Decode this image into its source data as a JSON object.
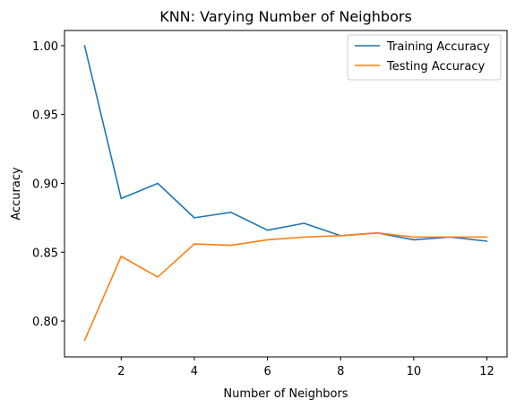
{
  "chart_data": {
    "type": "line",
    "title": "KNN: Varying Number of Neighbors",
    "xlabel": "Number of Neighbors",
    "ylabel": "Accuracy",
    "x": [
      1,
      2,
      3,
      4,
      5,
      6,
      7,
      8,
      9,
      10,
      11,
      12
    ],
    "xlim": [
      0.45,
      12.55
    ],
    "ylim": [
      0.774,
      1.011
    ],
    "xticks": [
      2,
      4,
      6,
      8,
      10,
      12
    ],
    "yticks": [
      0.8,
      0.85,
      0.9,
      0.95,
      1.0
    ],
    "xtick_labels": [
      "2",
      "4",
      "6",
      "8",
      "10",
      "12"
    ],
    "ytick_labels": [
      "0.80",
      "0.85",
      "0.90",
      "0.95",
      "1.00"
    ],
    "grid": false,
    "legend_position": "top-right",
    "series": [
      {
        "name": "Training Accuracy",
        "color": "#1f77b4",
        "values": [
          1.0,
          0.889,
          0.9,
          0.875,
          0.879,
          0.866,
          0.871,
          0.862,
          0.864,
          0.859,
          0.861,
          0.858
        ]
      },
      {
        "name": "Testing Accuracy",
        "color": "#ff7f0e",
        "values": [
          0.786,
          0.847,
          0.832,
          0.856,
          0.855,
          0.859,
          0.861,
          0.862,
          0.864,
          0.861,
          0.861,
          0.861
        ]
      }
    ]
  }
}
